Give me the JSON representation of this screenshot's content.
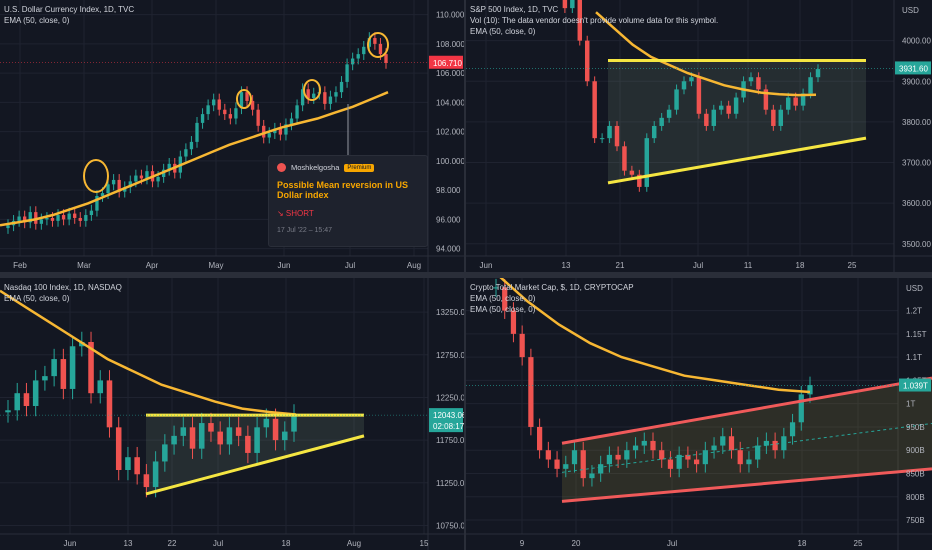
{
  "chart_data": [
    {
      "type": "candlestick",
      "title": "U.S. Dollar Currency Index, 1D, TVC",
      "indicator": "EMA (50, close, 0)",
      "y_ticks": [
        94.0,
        96.0,
        98.0,
        100.0,
        102.0,
        104.0,
        106.0,
        108.0,
        110.0
      ],
      "ylim": [
        93.5,
        111.0
      ],
      "y_unit": "USD",
      "x_ticks": [
        "Feb",
        "Mar",
        "Apr",
        "May",
        "Jun",
        "Jul",
        "Aug"
      ],
      "last_price": "106.710",
      "close_series": [
        95.6,
        95.9,
        96.2,
        95.8,
        96.5,
        95.7,
        96.0,
        96.1,
        95.9,
        96.3,
        96.0,
        96.4,
        96.1,
        95.9,
        96.3,
        96.6,
        97.6,
        97.8,
        98.4,
        98.7,
        97.9,
        98.2,
        98.6,
        99.0,
        98.8,
        99.3,
        98.6,
        98.9,
        99.4,
        99.8,
        99.2,
        100.3,
        100.8,
        101.3,
        102.6,
        103.2,
        103.8,
        104.2,
        103.5,
        103.2,
        102.9,
        103.6,
        104.7,
        104.1,
        103.5,
        102.4,
        101.6,
        101.9,
        102.2,
        101.8,
        102.5,
        102.9,
        103.8,
        104.9,
        104.3,
        104.6,
        104.7,
        103.9,
        104.4,
        104.7,
        105.4,
        106.6,
        107.0,
        107.3,
        107.8,
        108.4,
        108.0,
        107.3,
        106.7
      ],
      "ema_series": [
        95.6,
        95.8,
        96.0,
        96.3,
        96.7,
        97.1,
        97.6,
        98.1,
        98.6,
        99.1,
        99.6,
        100.1,
        100.6,
        101.1,
        101.5,
        101.9,
        102.3,
        102.6,
        102.9,
        103.3,
        103.7,
        104.2,
        104.7
      ],
      "annotations": [
        "circle",
        "circle",
        "circle",
        "circle"
      ],
      "idea": {
        "author": "Moshkelgosha",
        "badge": "Premium",
        "title": "Possible Mean reversion in US Dollar index",
        "signal": "↘ SHORT",
        "time": "17 Jul '22 – 15:47"
      }
    },
    {
      "type": "candlestick",
      "title": "S&P 500 Index, 1D, TVC",
      "indicator_lines": [
        "Vol (10): The data vendor doesn't provide volume data for this symbol.",
        "EMA (50, close, 0)"
      ],
      "y_ticks": [
        3500.0,
        3600.0,
        3700.0,
        3800.0,
        3900.0,
        4000.0
      ],
      "ylim": [
        3470,
        4100
      ],
      "y_unit": "USD",
      "x_ticks": [
        "Jun",
        "13",
        "21",
        "Jul",
        "11",
        "18",
        "25"
      ],
      "last_price": "3931.60",
      "close_series": [
        4150,
        4120,
        4080,
        4100,
        4000,
        3900,
        3760,
        3760,
        3790,
        3740,
        3680,
        3670,
        3640,
        3760,
        3790,
        3810,
        3830,
        3880,
        3900,
        3910,
        3820,
        3790,
        3830,
        3840,
        3820,
        3860,
        3900,
        3910,
        3880,
        3830,
        3790,
        3830,
        3860,
        3840,
        3870,
        3910,
        3930
      ],
      "ema_series": [
        4070,
        4030,
        3990,
        3960,
        3940,
        3920,
        3905,
        3890,
        3880,
        3872,
        3868,
        3866,
        3867
      ],
      "triangle": {
        "upper": 3951,
        "lower_start": 3650,
        "lower_end": 3760
      }
    },
    {
      "type": "candlestick",
      "title": "Nasdaq 100 Index, 1D, NASDAQ",
      "indicator": "EMA (50, close, 0)",
      "y_ticks": [
        10750.0,
        11250.0,
        11750.0,
        12250.0,
        12750.0,
        13250.0
      ],
      "ylim": [
        10650,
        13650
      ],
      "x_ticks": [
        "Jun",
        "13",
        "22",
        "Jul",
        "18",
        "Aug",
        "15"
      ],
      "last_price": "12043.06",
      "countdown": "02:08:17",
      "close_series": [
        12100,
        12300,
        12150,
        12450,
        12500,
        12700,
        12350,
        12850,
        12900,
        12300,
        12450,
        11900,
        11400,
        11550,
        11350,
        11200,
        11500,
        11700,
        11800,
        11900,
        11650,
        11950,
        11850,
        11700,
        11900,
        11800,
        11600,
        11900,
        12000,
        11750,
        11850,
        12050
      ],
      "ema_series": [
        13500,
        13300,
        13100,
        12900,
        12700,
        12550,
        12400,
        12300,
        12200,
        12120,
        12080,
        12050
      ],
      "triangle": {
        "upper": 12043,
        "lower_start": 11120,
        "lower_end": 11800
      }
    },
    {
      "type": "candlestick",
      "title": "Crypto Total Market Cap, $, 1D, CRYPTOCAP",
      "indicator_lines": [
        "EMA (50, close, 0)",
        "EMA (50, close, 0)"
      ],
      "y_labels": [
        "750B",
        "800B",
        "850B",
        "900B",
        "950B",
        "1T",
        "1.05T",
        "1.1T",
        "1.15T",
        "1.2T"
      ],
      "y_values": [
        750,
        800,
        850,
        900,
        950,
        1000,
        1050,
        1100,
        1150,
        1200
      ],
      "ylim": [
        720,
        1270
      ],
      "x_ticks": [
        "9",
        "20",
        "Jul",
        "18",
        "25"
      ],
      "last_price": "1.039T",
      "close_series": [
        1250,
        1200,
        1150,
        1100,
        950,
        900,
        880,
        860,
        870,
        900,
        840,
        850,
        870,
        890,
        880,
        900,
        910,
        920,
        900,
        880,
        860,
        890,
        880,
        870,
        900,
        910,
        930,
        900,
        870,
        880,
        910,
        920,
        900,
        930,
        960,
        1020,
        1040
      ],
      "ema_series": [
        1280,
        1220,
        1170,
        1130,
        1100,
        1080,
        1060,
        1050,
        1040,
        1030,
        1025
      ],
      "channel": {
        "upper_start": 915,
        "upper_end": 1055,
        "lower_start": 790,
        "lower_end": 860
      }
    }
  ]
}
